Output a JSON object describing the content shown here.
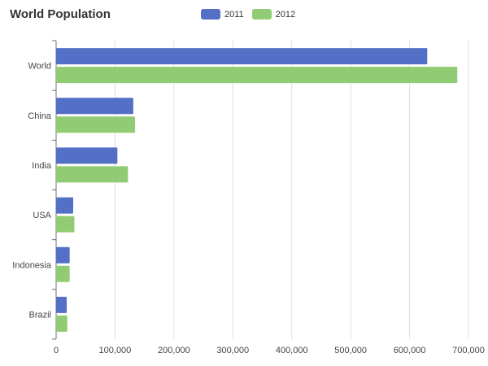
{
  "chart_data": {
    "type": "bar",
    "orientation": "horizontal",
    "title": "World Population",
    "categories": [
      "World",
      "China",
      "India",
      "USA",
      "Indonesia",
      "Brazil"
    ],
    "series": [
      {
        "name": "2011",
        "color": "#5470c6",
        "values": [
          630000,
          131000,
          104000,
          29000,
          23000,
          18000
        ]
      },
      {
        "name": "2012",
        "color": "#91cc75",
        "values": [
          681000,
          134000,
          122000,
          31000,
          23000,
          19000
        ]
      }
    ],
    "xlim": [
      0,
      700000
    ],
    "xticks": [
      "0",
      "100,000",
      "200,000",
      "300,000",
      "400,000",
      "500,000",
      "600,000",
      "700,000"
    ],
    "grid": "vertical",
    "legend_position": "top-center"
  }
}
